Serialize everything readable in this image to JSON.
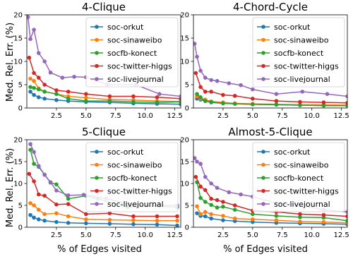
{
  "figure": {
    "ylabel": "Med. Rel. Err. (%)",
    "xlabel": "% of Edges visited"
  },
  "legend_labels": [
    "soc-orkut",
    "soc-sinaweibo",
    "socfb-konect",
    "soc-twitter-higgs",
    "soc-livejournal"
  ],
  "colors": {
    "soc-orkut": "#1f77b4",
    "soc-sinaweibo": "#ff7f0e",
    "socfb-konect": "#2ca02c",
    "soc-twitter-higgs": "#d62728",
    "soc-livejournal": "#9467bd"
  },
  "chart_data": [
    {
      "type": "line",
      "title": "4-Clique",
      "xlim": [
        0,
        13
      ],
      "ylim": [
        0,
        20
      ],
      "xticks": [
        "2.5",
        "5.0",
        "7.5",
        "10.0",
        "12.5"
      ],
      "yticks": [
        "0",
        "5",
        "10",
        "15",
        "20"
      ],
      "legend": "top-right",
      "series": [
        {
          "name": "soc-orkut",
          "x": [
            0.3,
            0.6,
            1.0,
            1.5,
            2.5,
            3.5,
            5,
            7,
            9,
            11,
            13
          ],
          "y": [
            3.5,
            2.8,
            2.3,
            2.0,
            1.7,
            1.5,
            1.3,
            1.2,
            1.0,
            0.9,
            0.8
          ]
        },
        {
          "name": "soc-sinaweibo",
          "x": [
            0.3,
            0.6,
            1.0,
            1.5,
            2.5,
            3.5,
            5,
            7,
            9,
            11,
            13
          ],
          "y": [
            6.3,
            5.8,
            4.2,
            3.5,
            3.0,
            2.5,
            2.2,
            1.8,
            1.7,
            1.5,
            1.4
          ]
        },
        {
          "name": "socfb-konect",
          "x": [
            0.3,
            0.6,
            1.0,
            1.5,
            2.5,
            3.5,
            5,
            7,
            9,
            11,
            13
          ],
          "y": [
            4.5,
            4.3,
            4.0,
            3.5,
            3.0,
            2.0,
            1.5,
            1.5,
            1.3,
            1.2,
            1.3
          ]
        },
        {
          "name": "soc-twitter-higgs",
          "x": [
            0.2,
            0.6,
            1.0,
            1.5,
            2.5,
            3.5,
            5,
            7,
            9,
            11,
            13
          ],
          "y": [
            10.8,
            7.5,
            6.5,
            5.0,
            3.8,
            3.5,
            3.0,
            2.5,
            2.5,
            2.3,
            2.0
          ]
        },
        {
          "name": "soc-livejournal",
          "x": [
            0.1,
            0.3,
            0.6,
            1.0,
            1.5,
            2.0,
            3.0,
            4.0,
            5.0,
            6.8,
            9.2,
            11.2,
            13.0
          ],
          "y": [
            19.5,
            14.8,
            16.8,
            11.8,
            10.0,
            7.6,
            6.5,
            6.7,
            6.6,
            5.0,
            5.0,
            3.0,
            2.5
          ]
        }
      ]
    },
    {
      "type": "line",
      "title": "4-Chord-Cycle",
      "xlim": [
        0,
        13
      ],
      "ylim": [
        0,
        20
      ],
      "xticks": [
        "2.5",
        "5.0",
        "7.5",
        "10.0",
        "12.5"
      ],
      "yticks": [
        "0",
        "5",
        "10",
        "15",
        "20"
      ],
      "legend": "top-right",
      "series": [
        {
          "name": "soc-orkut",
          "x": [
            0.3,
            0.6,
            1.0,
            1.5,
            2.5,
            3.5,
            5,
            7,
            9,
            11,
            13
          ],
          "y": [
            2.0,
            1.8,
            1.5,
            1.2,
            1.0,
            0.9,
            0.8,
            0.7,
            0.6,
            0.6,
            0.5
          ]
        },
        {
          "name": "soc-sinaweibo",
          "x": [
            0.3,
            0.6,
            1.0,
            1.5,
            2.5,
            3.5,
            5,
            7,
            9,
            11,
            13
          ],
          "y": [
            2.5,
            2.0,
            1.8,
            1.4,
            1.2,
            1.0,
            0.9,
            0.8,
            0.7,
            0.7,
            0.6
          ]
        },
        {
          "name": "socfb-konect",
          "x": [
            0.3,
            0.6,
            1.0,
            1.5,
            2.5,
            3.5,
            5,
            7,
            9,
            11,
            13
          ],
          "y": [
            3.0,
            2.3,
            1.5,
            1.3,
            1.0,
            0.9,
            0.8,
            0.7,
            0.6,
            0.5,
            0.5
          ]
        },
        {
          "name": "soc-twitter-higgs",
          "x": [
            0.2,
            0.6,
            1.0,
            1.5,
            2.5,
            3.5,
            5,
            7,
            9,
            11,
            13
          ],
          "y": [
            7.5,
            4.5,
            3.5,
            3.5,
            2.8,
            2.6,
            2.0,
            1.5,
            1.3,
            1.2,
            1.1
          ]
        },
        {
          "name": "soc-livejournal",
          "x": [
            0.1,
            0.3,
            0.6,
            1.0,
            1.5,
            2.0,
            3.0,
            4.0,
            5.0,
            7.0,
            9.2,
            11.3,
            13.0
          ],
          "y": [
            13.8,
            11.0,
            8.0,
            6.5,
            6.0,
            5.8,
            5.3,
            4.9,
            4.0,
            3.0,
            3.5,
            3.0,
            2.5
          ]
        }
      ]
    },
    {
      "type": "line",
      "title": "5-Clique",
      "xlim": [
        0,
        13
      ],
      "ylim": [
        0,
        20
      ],
      "xticks": [
        "2.5",
        "5.0",
        "7.5",
        "10.0",
        "12.5"
      ],
      "yticks": [
        "0",
        "5",
        "10",
        "15",
        "20"
      ],
      "legend": "top-right",
      "series": [
        {
          "name": "soc-orkut",
          "x": [
            0.3,
            0.6,
            1.0,
            1.5,
            2.5,
            3.5,
            5,
            7,
            9,
            11,
            12.7
          ],
          "y": [
            2.8,
            2.2,
            1.8,
            1.5,
            1.2,
            1.0,
            0.9,
            0.8,
            0.7,
            0.6,
            0.4
          ]
        },
        {
          "name": "soc-sinaweibo",
          "x": [
            0.3,
            0.6,
            1.0,
            1.5,
            2.5,
            3.5,
            5,
            7,
            9,
            11,
            12.7
          ],
          "y": [
            5.5,
            5.0,
            4.0,
            3.0,
            3.2,
            2.5,
            1.8,
            1.7,
            1.6,
            1.5,
            1.5
          ]
        },
        {
          "name": "socfb-konect",
          "x": [
            0.3,
            0.6,
            1.0,
            1.5,
            2.0,
            2.5,
            3.5,
            5.0,
            6.0,
            8.5,
            11.2,
            12.7
          ],
          "y": [
            17.7,
            14.5,
            13.8,
            12.0,
            10.2,
            9.8,
            6.5,
            7.2,
            6.5,
            4.6,
            4.8,
            4.6
          ]
        },
        {
          "name": "soc-twitter-higgs",
          "x": [
            0.2,
            0.6,
            1.0,
            1.5,
            2.5,
            3.5,
            5,
            7,
            9,
            11,
            12.7
          ],
          "y": [
            12.2,
            10.5,
            7.5,
            7.2,
            5.2,
            5.3,
            3.0,
            3.2,
            2.5,
            2.5,
            2.5
          ]
        },
        {
          "name": "soc-livejournal",
          "x": [
            0.3,
            0.6,
            1.0,
            1.5,
            2.0,
            2.5,
            3.5,
            4.8,
            6.7,
            9.0,
            11.1,
            12.7
          ],
          "y": [
            19.0,
            17.2,
            14.0,
            12.0,
            10.3,
            8.4,
            7.3,
            7.4,
            6.6,
            5.0,
            5.0,
            5.0
          ]
        }
      ]
    },
    {
      "type": "line",
      "title": "Almost-5-Clique",
      "xlim": [
        0,
        13
      ],
      "ylim": [
        0,
        20
      ],
      "xticks": [
        "2.5",
        "5.0",
        "7.5",
        "10.0",
        "12.5"
      ],
      "yticks": [
        "0",
        "5",
        "10",
        "15",
        "20"
      ],
      "legend": "top-right",
      "series": [
        {
          "name": "soc-orkut",
          "x": [
            0.3,
            0.6,
            1.0,
            1.5,
            2.5,
            3.5,
            5,
            7,
            9,
            11,
            13
          ],
          "y": [
            3.2,
            2.6,
            2.5,
            2.0,
            1.6,
            1.4,
            1.2,
            1.0,
            0.9,
            0.8,
            0.7
          ]
        },
        {
          "name": "soc-sinaweibo",
          "x": [
            0.3,
            0.6,
            1.0,
            1.5,
            2.5,
            3.5,
            5,
            7,
            9,
            11,
            13
          ],
          "y": [
            4.8,
            3.0,
            3.5,
            3.0,
            2.6,
            2.0,
            1.8,
            1.6,
            1.3,
            1.2,
            1.0
          ]
        },
        {
          "name": "socfb-konect",
          "x": [
            0.3,
            0.6,
            1.0,
            1.5,
            2.0,
            2.5,
            3.5,
            5.0,
            7.0,
            9.0,
            11.0,
            13.0
          ],
          "y": [
            10.3,
            6.7,
            5.8,
            5.1,
            4.5,
            4.7,
            4.0,
            3.0,
            2.6,
            2.3,
            2.2,
            1.5
          ]
        },
        {
          "name": "soc-twitter-higgs",
          "x": [
            0.2,
            0.6,
            1.0,
            1.5,
            2.0,
            2.5,
            3.5,
            5,
            7,
            9,
            11,
            13
          ],
          "y": [
            11.5,
            9.3,
            8.5,
            6.5,
            6.2,
            5.8,
            5.0,
            3.8,
            3.5,
            3.0,
            2.8,
            2.5
          ]
        },
        {
          "name": "soc-livejournal",
          "x": [
            0.1,
            0.3,
            0.6,
            1.0,
            1.5,
            2.0,
            3.0,
            4.0,
            5.0,
            7.0,
            9.0,
            11.0,
            13.0
          ],
          "y": [
            15.8,
            15.0,
            14.5,
            11.5,
            10.0,
            9.0,
            8.0,
            7.5,
            7.0,
            5.5,
            5.0,
            4.0,
            3.5
          ]
        }
      ]
    }
  ]
}
